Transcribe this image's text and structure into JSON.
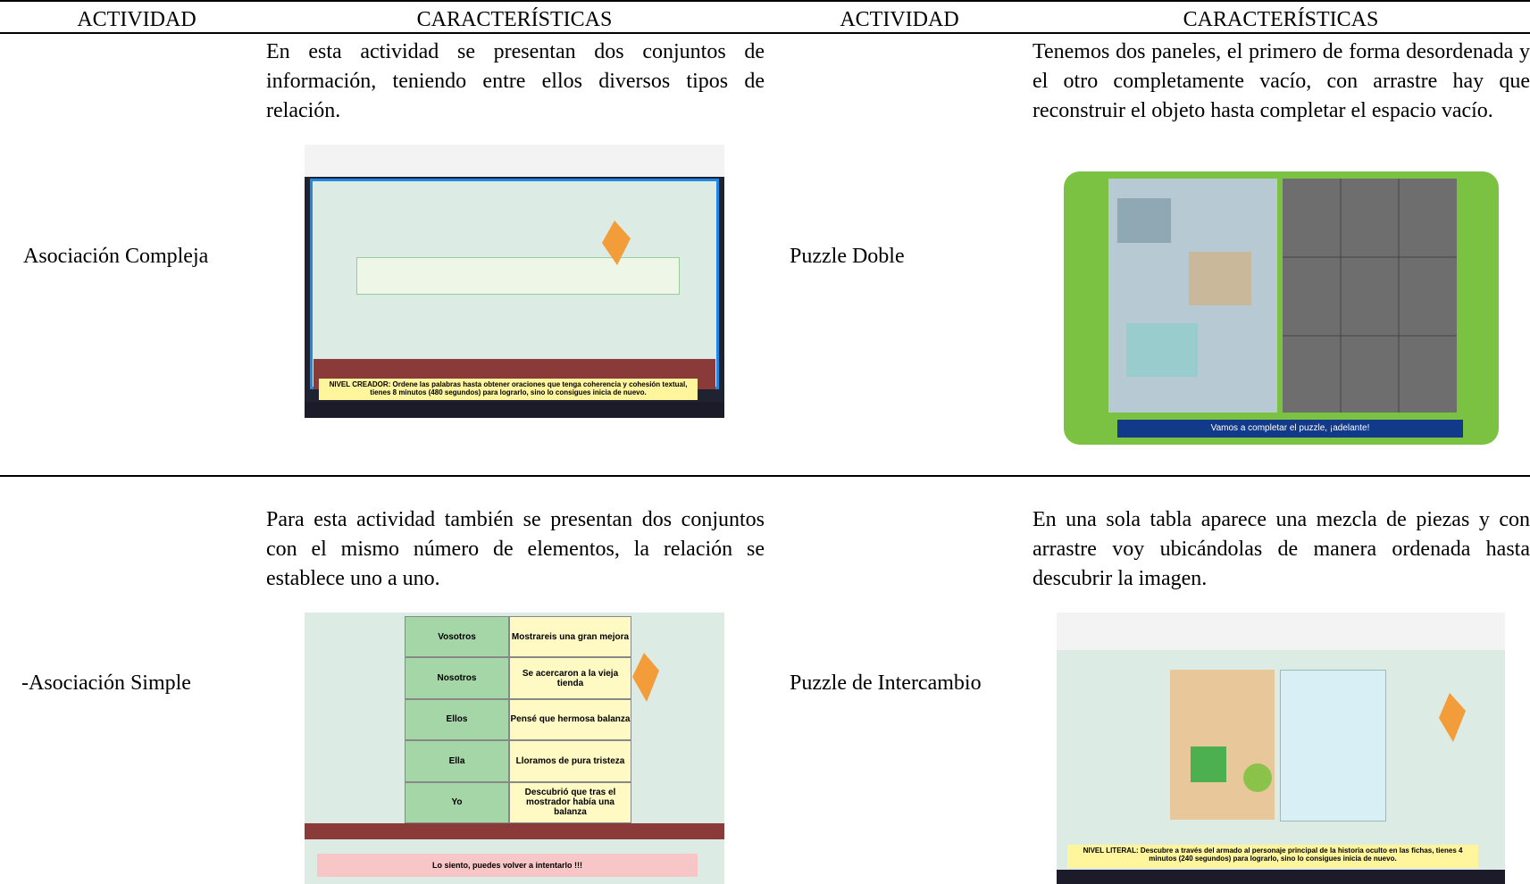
{
  "table": {
    "headers": [
      "ACTIVIDAD",
      "CARACTERÍSTICAS",
      "ACTIVIDAD",
      "CARACTERÍSTICAS"
    ],
    "rows": [
      {
        "activity_left": "Asociación Compleja",
        "description_left": "En esta actividad se presentan dos conjuntos de información, teniendo entre ellos diversos tipos de relación.",
        "activity_right": "Puzzle Doble",
        "description_right": "Tenemos dos paneles, el primero de forma desordenada y el otro completamente vacío, con arrastre hay que reconstruir el objeto hasta completar el espacio vacío."
      },
      {
        "activity_left": "-Asociación Simple",
        "description_left": "Para esta actividad también se presentan dos conjuntos con el mismo número de elementos, la relación se establece uno a uno.",
        "activity_right": "Puzzle de Intercambio",
        "description_right": "En una sola tabla aparece una mezcla de piezas y con arrastre voy ubicándolas de manera ordenada hasta descubrir la imagen."
      }
    ]
  },
  "screenshots": {
    "complex": {
      "instruction": "NIVEL CREADOR: Ordene las palabras hasta obtener oraciones que tenga coherencia y cohesión textual, tienes 8 minutos (480 segundos) para lograrlo, sino lo consigues inicia de nuevo."
    },
    "double": {
      "caption": "Vamos a completar el puzzle, ¡adelante!"
    },
    "simple": {
      "left": [
        "Vosotros",
        "Nosotros",
        "Ellos",
        "Ella",
        "Yo"
      ],
      "right": [
        "Mostrareis una gran mejora",
        "Se acercaron a la vieja tienda",
        "Pensé que hermosa balanza",
        "Lloramos de pura tristeza",
        "Descubrió que tras el mostrador había una balanza"
      ],
      "message": "Lo siento, puedes volver a intentarlo !!!"
    },
    "exchange": {
      "instruction": "NIVEL LITERAL: Descubre a través del armado al personaje principal de la historia oculto en las fichas, tienes 4 minutos (240 segundos) para lograrlo, sino lo consigues inicia de nuevo."
    }
  }
}
